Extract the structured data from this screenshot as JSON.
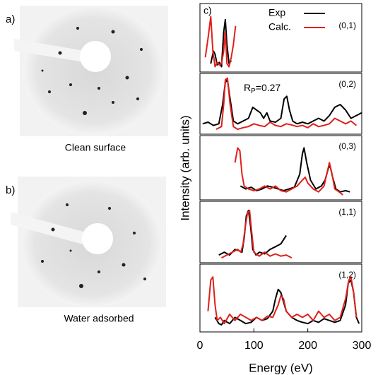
{
  "images": [
    {
      "label": "a)",
      "caption": "Clean surface"
    },
    {
      "label": "b)",
      "caption": "Water adsorbed"
    }
  ],
  "chart_data": [
    {
      "type": "line",
      "panel_label": "c)",
      "ylabel": "Intensity (arb. units)",
      "annotation": "(0,1)",
      "xlim": [
        0,
        300
      ],
      "ylim": [
        0,
        10
      ],
      "series": [
        {
          "name": "Exp",
          "color": "#000000",
          "x": [
            20,
            25,
            28,
            32,
            36,
            40,
            44,
            47,
            50,
            54,
            58
          ],
          "values": [
            1,
            3,
            2.5,
            0.8,
            1.2,
            0.5,
            6,
            8,
            4,
            1,
            1.5
          ]
        },
        {
          "name": "Calc.",
          "color": "#e0201b",
          "x": [
            10,
            15,
            20,
            24,
            28,
            32,
            36,
            40,
            44,
            47,
            50,
            54,
            58,
            62,
            66
          ],
          "values": [
            2,
            5,
            8.5,
            3,
            0.5,
            1.2,
            0.8,
            1,
            3,
            6,
            1,
            0.5,
            2,
            4,
            7
          ]
        }
      ]
    },
    {
      "type": "line",
      "annotation": "(0,2)",
      "r_factor": {
        "symbol": "R",
        "subscript": "P",
        "text": "=0.27"
      },
      "xlim": [
        0,
        300
      ],
      "ylim": [
        0,
        10
      ],
      "series": [
        {
          "color": "#000000",
          "x": [
            5,
            15,
            25,
            35,
            42,
            47,
            51,
            56,
            62,
            70,
            80,
            90,
            98,
            105,
            112,
            118,
            124,
            130,
            140,
            150,
            156,
            161,
            166,
            172,
            180,
            190,
            200,
            210,
            220,
            230,
            240,
            250,
            260,
            270,
            280,
            290,
            300
          ],
          "values": [
            1.5,
            1.8,
            1.2,
            1.5,
            5,
            9,
            9.5,
            6,
            2,
            1.5,
            2,
            2.5,
            4.5,
            4,
            3.5,
            2.5,
            3.5,
            2,
            1.8,
            2.5,
            6,
            6.5,
            4,
            2,
            1.5,
            1.8,
            1.5,
            2,
            2.5,
            2,
            3,
            4.5,
            5,
            4,
            2.5,
            3,
            3.5
          ]
        },
        {
          "color": "#e0201b",
          "x": [
            30,
            40,
            44,
            47,
            51,
            56,
            62,
            70,
            80,
            90,
            100,
            110,
            120,
            130,
            140,
            150,
            160,
            170,
            180,
            190,
            200,
            210,
            220,
            230,
            240,
            250,
            260,
            270,
            280,
            290
          ],
          "values": [
            0.5,
            1,
            5,
            9.5,
            9.8,
            5,
            1,
            0.5,
            0.8,
            1,
            1.5,
            1.2,
            1,
            1.8,
            1.2,
            1,
            1.5,
            1.3,
            1,
            1.2,
            0.8,
            1.5,
            1,
            1.2,
            1.5,
            2.5,
            2,
            1.5,
            2,
            1.2
          ]
        }
      ]
    },
    {
      "type": "line",
      "annotation": "(0,3)",
      "xlim": [
        0,
        300
      ],
      "ylim": [
        0,
        10
      ],
      "series": [
        {
          "color": "#000000",
          "x": [
            75,
            85,
            95,
            105,
            115,
            125,
            135,
            145,
            155,
            165,
            175,
            185,
            190,
            193,
            198,
            205,
            215,
            225,
            232,
            238,
            241,
            246,
            252,
            260,
            270,
            278
          ],
          "values": [
            2,
            1.5,
            1.8,
            1.2,
            1.5,
            2,
            1.8,
            1.5,
            1.2,
            1.5,
            1.8,
            4,
            7.5,
            8.5,
            6,
            3,
            1.5,
            2,
            3,
            5,
            5.5,
            3.5,
            1.5,
            1,
            1.2,
            1
          ]
        },
        {
          "color": "#e0201b",
          "x": [
            65,
            70,
            74,
            78,
            82,
            90,
            100,
            110,
            120,
            130,
            140,
            150,
            160,
            170,
            180,
            190,
            195,
            200,
            210,
            220,
            230,
            235,
            240,
            245,
            250,
            258,
            265
          ],
          "values": [
            6,
            8.5,
            8,
            4,
            2,
            1.5,
            1.2,
            1.5,
            2,
            1.5,
            2,
            1.2,
            1,
            1.5,
            2,
            3,
            3.5,
            2.5,
            1.5,
            1,
            2,
            4,
            6,
            4,
            1.5,
            1,
            0.5
          ]
        }
      ]
    },
    {
      "type": "line",
      "annotation": "(1,1)",
      "xlim": [
        0,
        300
      ],
      "ylim": [
        0,
        10
      ],
      "series": [
        {
          "color": "#000000",
          "x": [
            35,
            45,
            55,
            65,
            72,
            78,
            82,
            86,
            90,
            94,
            98,
            104,
            110,
            120,
            130,
            140,
            150,
            160
          ],
          "values": [
            1,
            1.5,
            1,
            2,
            1.8,
            1.5,
            4,
            8,
            9,
            6,
            2,
            1,
            1.5,
            1.2,
            2,
            2.5,
            3,
            4.5
          ]
        },
        {
          "color": "#e0201b",
          "x": [
            40,
            50,
            60,
            70,
            76,
            80,
            84,
            88,
            92,
            96,
            100,
            110,
            120,
            130,
            140,
            150,
            160,
            170
          ],
          "values": [
            0.5,
            1,
            1.5,
            2,
            1.5,
            3,
            6,
            8.5,
            9,
            5,
            1.5,
            0.8,
            1.5,
            0.8,
            1.2,
            0.8,
            1,
            0.5
          ]
        }
      ]
    },
    {
      "type": "line",
      "annotation": "(1,2)",
      "xlabel": "Energy (eV)",
      "xlim": [
        0,
        300
      ],
      "ylim": [
        0,
        10
      ],
      "xticks": [
        0,
        100,
        200,
        300
      ],
      "series": [
        {
          "color": "#000000",
          "x": [
            28,
            35,
            40,
            45,
            55,
            65,
            75,
            85,
            95,
            105,
            115,
            125,
            135,
            140,
            145,
            150,
            155,
            160,
            170,
            180,
            190,
            200,
            210,
            220,
            230,
            240,
            250,
            260,
            270,
            275,
            280,
            285,
            290,
            295
          ],
          "values": [
            2,
            1,
            0.8,
            1.5,
            1,
            2,
            1.5,
            1,
            1.2,
            2,
            1.5,
            1.8,
            3,
            5,
            6.5,
            6,
            4.5,
            3,
            2,
            1.5,
            1.2,
            1,
            1.5,
            1.2,
            1.8,
            1.5,
            1.2,
            1.5,
            4,
            7.5,
            8,
            6,
            2,
            1
          ]
        },
        {
          "color": "#e0201b",
          "x": [
            15,
            20,
            24,
            28,
            32,
            38,
            45,
            55,
            65,
            75,
            85,
            95,
            105,
            115,
            125,
            135,
            145,
            150,
            155,
            160,
            170,
            180,
            190,
            200,
            210,
            220,
            230,
            240,
            250,
            260,
            270,
            276,
            280,
            285,
            290
          ],
          "values": [
            3,
            8,
            8.5,
            4,
            1.5,
            2,
            1,
            2.5,
            1.5,
            2.5,
            2,
            1.5,
            2,
            1.5,
            2.2,
            2,
            4,
            5.5,
            5,
            3,
            2,
            2.5,
            2,
            2.5,
            1.5,
            3,
            2,
            2.5,
            1.5,
            2,
            5,
            8,
            8.5,
            6,
            2
          ]
        }
      ]
    }
  ]
}
